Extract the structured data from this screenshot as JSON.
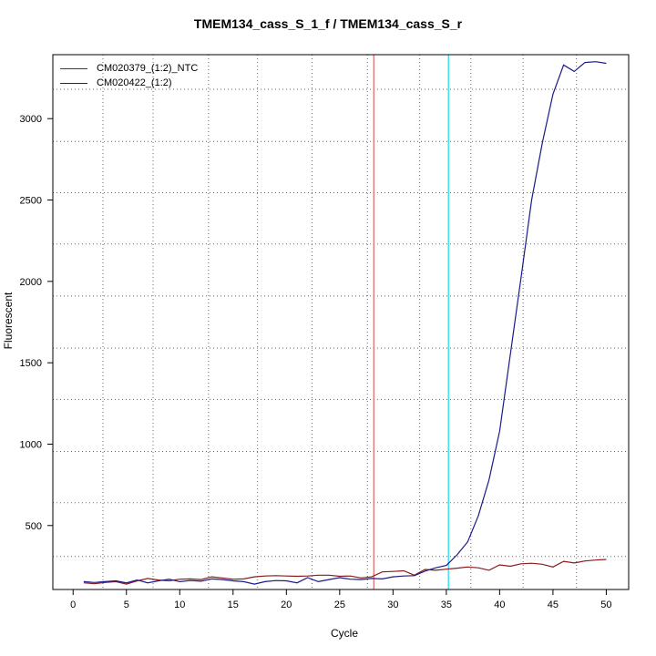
{
  "chart_data": {
    "type": "line",
    "title": "TMEM134_cass_S_1_f / TMEM134_cass_S_r",
    "xlabel": "Cycle",
    "ylabel": "Fluorescent",
    "xlim": [
      -1.9,
      52.1
    ],
    "ylim": [
      107,
      3393
    ],
    "xticks": [
      0,
      5,
      10,
      15,
      20,
      25,
      30,
      35,
      40,
      45,
      50
    ],
    "yticks": [
      500,
      1000,
      1500,
      2000,
      2500,
      3000
    ],
    "grid": true,
    "grid_x": [
      2.8,
      7.5,
      12.7,
      17.3,
      22.4,
      27.6,
      32.5,
      37.3,
      42.2,
      47.2
    ],
    "grid_y": [
      310,
      640,
      955,
      1275,
      1590,
      1910,
      2230,
      2545,
      2860,
      3180
    ],
    "legend_position": "top-left",
    "threshold_lines": [
      {
        "x": 28.2,
        "color": "#e07070"
      },
      {
        "x": 35.2,
        "color": "#22ddee"
      }
    ],
    "x": [
      1,
      2,
      3,
      4,
      5,
      6,
      7,
      8,
      9,
      10,
      11,
      12,
      13,
      14,
      15,
      16,
      17,
      18,
      19,
      20,
      21,
      22,
      23,
      24,
      25,
      26,
      27,
      28,
      29,
      30,
      31,
      32,
      33,
      34,
      35,
      36,
      37,
      38,
      39,
      40,
      41,
      42,
      43,
      44,
      45,
      46,
      47,
      48,
      49,
      50
    ],
    "series": [
      {
        "name": "CM020379_(1:2)_NTC",
        "color": "#8b1a1a",
        "values": [
          148,
          142,
          150,
          155,
          140,
          160,
          175,
          165,
          160,
          170,
          172,
          168,
          185,
          178,
          170,
          172,
          185,
          190,
          192,
          190,
          188,
          190,
          195,
          195,
          188,
          190,
          178,
          185,
          215,
          218,
          222,
          195,
          230,
          225,
          232,
          238,
          245,
          240,
          225,
          258,
          250,
          265,
          268,
          262,
          245,
          280,
          270,
          282,
          288,
          292
        ]
      },
      {
        "name": "CM020422_(1:2)",
        "color": "#1a1a8b",
        "values": [
          155,
          150,
          155,
          160,
          148,
          165,
          148,
          160,
          170,
          155,
          162,
          158,
          172,
          168,
          160,
          155,
          140,
          155,
          162,
          160,
          148,
          180,
          155,
          168,
          180,
          170,
          168,
          175,
          172,
          185,
          190,
          192,
          220,
          240,
          255,
          320,
          400,
          560,
          780,
          1080,
          1550,
          2020,
          2500,
          2850,
          3150,
          3330,
          3290,
          3345,
          3350,
          3340
        ]
      }
    ]
  }
}
